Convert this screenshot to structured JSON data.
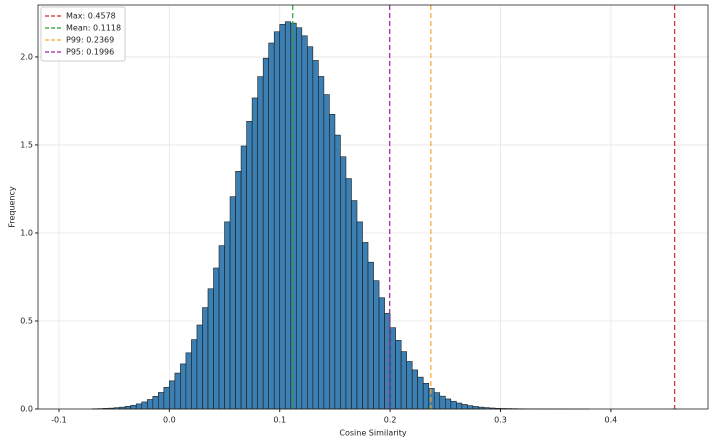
{
  "chart_data": {
    "type": "histogram",
    "x_label": "Cosine Similarity",
    "y_label": "Frequency",
    "bins": [
      -0.07,
      -0.065,
      -0.06,
      -0.055,
      -0.05,
      -0.045,
      -0.04,
      -0.035,
      -0.03,
      -0.025,
      -0.02,
      -0.015,
      -0.01,
      -0.005,
      0,
      0.005,
      0.01,
      0.015,
      0.02,
      0.025,
      0.03,
      0.035,
      0.04,
      0.045,
      0.05,
      0.055,
      0.06,
      0.065,
      0.07,
      0.075,
      0.08,
      0.085,
      0.09,
      0.095,
      0.1,
      0.105,
      0.11,
      0.115,
      0.12,
      0.125,
      0.13,
      0.135,
      0.14,
      0.145,
      0.15,
      0.155,
      0.16,
      0.165,
      0.17,
      0.175,
      0.18,
      0.185,
      0.19,
      0.195,
      0.2,
      0.205,
      0.21,
      0.215,
      0.22,
      0.225,
      0.23,
      0.235,
      0.24,
      0.245,
      0.25,
      0.255,
      0.26,
      0.265,
      0.27,
      0.275,
      0.28,
      0.285,
      0.29,
      0.295,
      0.3,
      0.305,
      0.31,
      0.315,
      0.32,
      0.325,
      0.33,
      0.335,
      0.34,
      0.345,
      0.35,
      0.355,
      0.36,
      0.365,
      0.37,
      0.375,
      0.38,
      0.385,
      0.39,
      0.395,
      0.4,
      0.405,
      0.41,
      0.415,
      0.42,
      0.425,
      0.43,
      0.435,
      0.44,
      0.445,
      0.45,
      0.455,
      0.46
    ],
    "values": [
      0.0015,
      0.0023,
      0.0035,
      0.005,
      0.0074,
      0.0106,
      0.015,
      0.021,
      0.029,
      0.04,
      0.054,
      0.072,
      0.094,
      0.123,
      0.16,
      0.204,
      0.256,
      0.319,
      0.394,
      0.477,
      0.576,
      0.683,
      0.801,
      0.928,
      1.063,
      1.206,
      1.35,
      1.494,
      1.634,
      1.767,
      1.888,
      1.993,
      2.079,
      2.143,
      2.185,
      2.2,
      2.192,
      2.166,
      2.12,
      2.058,
      1.98,
      1.889,
      1.786,
      1.674,
      1.556,
      1.433,
      1.309,
      1.184,
      1.063,
      0.946,
      0.834,
      0.729,
      0.632,
      0.543,
      0.462,
      0.39,
      0.326,
      0.27,
      0.222,
      0.181,
      0.146,
      0.117,
      0.093,
      0.073,
      0.057,
      0.044,
      0.034,
      0.026,
      0.019,
      0.0145,
      0.0107,
      0.0079,
      0.0057,
      0.0041,
      0.003,
      0.0025,
      0.002,
      0.0015,
      0.0012,
      0.001,
      0.0008,
      0.0006,
      0.0005,
      0.0004,
      0.0003,
      0.0002,
      0.0002,
      0.0001,
      0.0001,
      0.0001,
      0,
      0,
      0,
      0,
      0,
      0,
      0,
      0,
      0,
      0,
      0,
      0,
      0,
      0,
      0,
      0.0001
    ],
    "color": "#3b7fb3",
    "edge_color": "#1c1c1c",
    "xlim": [
      -0.119,
      0.488
    ],
    "ylim": [
      0,
      2.295
    ],
    "xticks": [
      -0.1,
      {
        "value": 0,
        "label": "0.0"
      },
      0.1,
      0.2,
      0.3,
      0.4
    ],
    "yticks": [
      {
        "value": 0,
        "label": "0.0"
      },
      0.5,
      {
        "value": 1,
        "label": "1.0"
      },
      1.5,
      {
        "value": 2,
        "label": "2.0"
      }
    ],
    "grid": true,
    "legend_position": "upper left",
    "vlines": [
      {
        "label": "Max: 0.4578",
        "value": 0.4578,
        "color": "#d62728"
      },
      {
        "label": "Mean: 0.1118",
        "value": 0.1118,
        "color": "#2ca02c"
      },
      {
        "label": "P99: 0.2369",
        "value": 0.2369,
        "color": "#f5a623"
      },
      {
        "label": "P95: 0.1996",
        "value": 0.1996,
        "color": "#9b27a8"
      }
    ]
  }
}
